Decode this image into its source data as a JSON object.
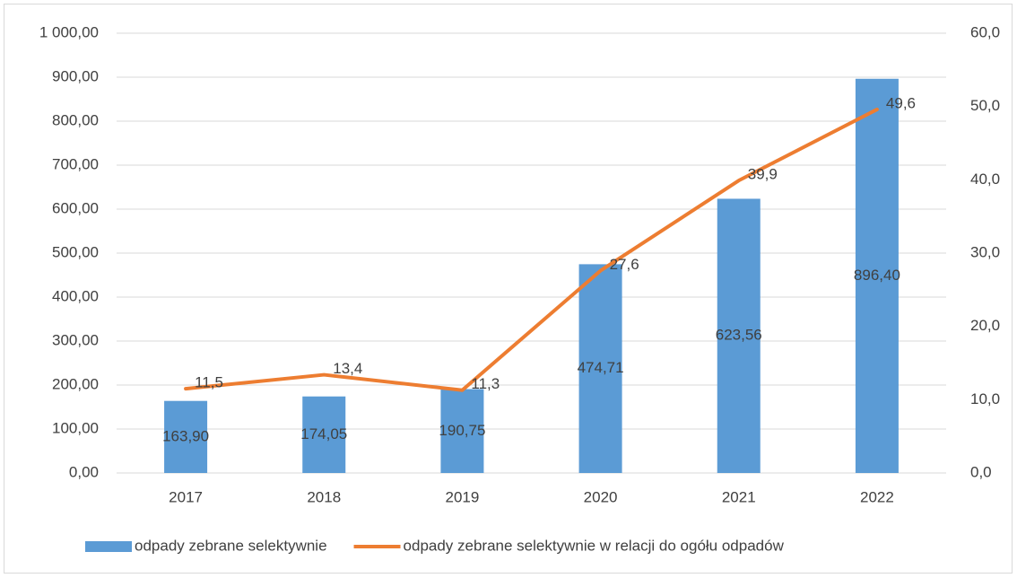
{
  "chart_data": {
    "type": "bar",
    "categories": [
      "2017",
      "2018",
      "2019",
      "2020",
      "2021",
      "2022"
    ],
    "series": [
      {
        "name": "odpady zebrane selektywnie",
        "type": "bar",
        "color": "#5b9bd5",
        "values": [
          163.9,
          174.05,
          190.75,
          474.71,
          623.56,
          896.4
        ],
        "value_labels": [
          "163,90",
          "174,05",
          "190,75",
          "474,71",
          "623,56",
          "896,40"
        ]
      },
      {
        "name": "odpady zebrane selektywnie w relacji do ogółu odpadów",
        "type": "line",
        "axis": "y2",
        "color": "#ed7d31",
        "values": [
          11.5,
          13.4,
          11.3,
          27.6,
          39.9,
          49.6
        ],
        "value_labels": [
          "11,5",
          "13,4",
          "11,3",
          "27,6",
          "39,9",
          "49,6"
        ]
      }
    ],
    "ylim": [
      0,
      1000
    ],
    "yticks": [
      {
        "value": 0,
        "label": "0,00"
      },
      {
        "value": 100,
        "label": "100,00"
      },
      {
        "value": 200,
        "label": "200,00"
      },
      {
        "value": 300,
        "label": "300,00"
      },
      {
        "value": 400,
        "label": "400,00"
      },
      {
        "value": 500,
        "label": "500,00"
      },
      {
        "value": 600,
        "label": "600,00"
      },
      {
        "value": 700,
        "label": "700,00"
      },
      {
        "value": 800,
        "label": "800,00"
      },
      {
        "value": 900,
        "label": "900,00"
      },
      {
        "value": 1000,
        "label": "1 000,00"
      }
    ],
    "y2lim": [
      0,
      60
    ],
    "y2ticks": [
      {
        "value": 0,
        "label": "0,0"
      },
      {
        "value": 10,
        "label": "10,0"
      },
      {
        "value": 20,
        "label": "20,0"
      },
      {
        "value": 30,
        "label": "30,0"
      },
      {
        "value": 40,
        "label": "40,0"
      },
      {
        "value": 50,
        "label": "50,0"
      },
      {
        "value": 60,
        "label": "60,0"
      }
    ],
    "grid": true,
    "legend": "bottom"
  }
}
